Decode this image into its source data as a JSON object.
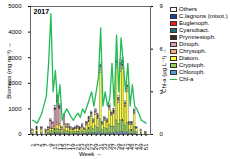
{
  "chart_data": {
    "type": "bar",
    "title": "2017",
    "x_label": "Week",
    "y_label": "Biomass (mg m⁻³)",
    "y2_label": "Chl-a (µg L⁻¹)",
    "stacked": true,
    "legend": "right",
    "x": [
      1,
      3,
      5,
      7,
      8,
      9,
      10,
      11,
      12,
      13,
      14,
      15,
      16,
      17,
      18,
      19,
      20,
      21,
      22,
      23,
      24,
      25,
      26,
      27,
      28,
      29,
      30,
      31,
      32,
      33,
      34,
      35,
      36,
      37,
      38,
      39,
      40,
      41,
      42,
      43,
      44,
      45,
      46,
      47,
      49,
      51
    ],
    "xlim": [
      0,
      53
    ],
    "xticks": [
      1,
      3,
      5,
      7,
      9,
      11,
      13,
      15,
      17,
      19,
      21,
      23,
      25,
      27,
      29,
      31,
      33,
      35,
      37,
      39,
      41,
      43,
      45,
      47,
      49,
      51
    ],
    "ylim": [
      0,
      5000
    ],
    "yticks": [
      0,
      1000,
      2000,
      3000,
      4000,
      5000
    ],
    "y2lim": [
      0,
      9
    ],
    "y2ticks": [
      0,
      3,
      6,
      9
    ],
    "series": [
      {
        "name": "Others",
        "color": "#ffffff",
        "values": [
          20,
          30,
          30,
          20,
          30,
          40,
          40,
          60,
          80,
          60,
          20,
          40,
          30,
          30,
          20,
          20,
          20,
          20,
          20,
          30,
          20,
          30,
          40,
          40,
          30,
          50,
          40,
          80,
          30,
          40,
          30,
          60,
          40,
          50,
          100,
          60,
          100,
          100,
          60,
          80,
          30,
          30,
          50,
          20,
          20,
          10
        ]
      },
      {
        "name": "C.lagnons (mixot.)",
        "color": "#1f3f99",
        "values": [
          0,
          0,
          0,
          0,
          0,
          0,
          0,
          30,
          60,
          50,
          0,
          0,
          0,
          0,
          0,
          0,
          0,
          0,
          0,
          0,
          0,
          0,
          0,
          0,
          0,
          0,
          0,
          0,
          0,
          0,
          0,
          0,
          0,
          0,
          0,
          0,
          0,
          0,
          0,
          0,
          0,
          0,
          0,
          0,
          0,
          0
        ]
      },
      {
        "name": "Euglenoph.",
        "color": "#e8211c",
        "values": [
          0,
          0,
          0,
          0,
          0,
          0,
          0,
          0,
          150,
          50,
          0,
          0,
          0,
          0,
          0,
          0,
          0,
          0,
          0,
          0,
          0,
          0,
          0,
          0,
          0,
          0,
          0,
          0,
          0,
          0,
          0,
          0,
          0,
          0,
          0,
          0,
          0,
          0,
          0,
          0,
          0,
          0,
          0,
          0,
          0,
          0
        ]
      },
      {
        "name": "Cyanobact.",
        "color": "#2a6f6f",
        "values": [
          0,
          0,
          0,
          0,
          0,
          0,
          0,
          0,
          0,
          0,
          0,
          0,
          0,
          0,
          10,
          10,
          20,
          30,
          20,
          30,
          20,
          40,
          50,
          60,
          40,
          60,
          50,
          100,
          30,
          40,
          40,
          60,
          50,
          50,
          100,
          80,
          100,
          100,
          60,
          80,
          30,
          30,
          50,
          20,
          0,
          0
        ]
      },
      {
        "name": "Prymnesioph.",
        "color": "#3b2a1a",
        "values": [
          0,
          0,
          20,
          10,
          20,
          40,
          30,
          50,
          60,
          40,
          10,
          20,
          10,
          10,
          0,
          0,
          0,
          0,
          0,
          0,
          0,
          0,
          0,
          0,
          0,
          0,
          0,
          0,
          0,
          0,
          0,
          0,
          0,
          0,
          0,
          0,
          0,
          0,
          0,
          0,
          0,
          0,
          0,
          0,
          0,
          0
        ]
      },
      {
        "name": "Dinoph.",
        "color": "#d9a0b0",
        "values": [
          20,
          30,
          30,
          30,
          60,
          250,
          200,
          600,
          800,
          600,
          80,
          300,
          80,
          60,
          40,
          30,
          30,
          40,
          30,
          40,
          20,
          40,
          50,
          60,
          40,
          60,
          50,
          100,
          30,
          40,
          30,
          60,
          50,
          50,
          100,
          60,
          100,
          100,
          60,
          80,
          30,
          30,
          50,
          20,
          10,
          10
        ]
      },
      {
        "name": "Chrysoph.",
        "color": "#f4b183",
        "values": [
          30,
          40,
          40,
          20,
          30,
          40,
          30,
          60,
          80,
          60,
          20,
          60,
          40,
          50,
          40,
          30,
          30,
          30,
          30,
          40,
          20,
          40,
          50,
          60,
          40,
          60,
          50,
          120,
          30,
          40,
          30,
          60,
          50,
          50,
          150,
          80,
          150,
          150,
          60,
          100,
          30,
          30,
          50,
          20,
          20,
          10
        ]
      },
      {
        "name": "Diatom.",
        "color": "#ffff33",
        "values": [
          80,
          120,
          100,
          60,
          80,
          100,
          80,
          100,
          150,
          150,
          80,
          200,
          120,
          130,
          90,
          80,
          100,
          120,
          100,
          130,
          80,
          180,
          280,
          400,
          250,
          450,
          350,
          1800,
          200,
          300,
          250,
          600,
          400,
          500,
          2000,
          800,
          1900,
          2000,
          700,
          1200,
          220,
          220,
          500,
          120,
          80,
          40
        ]
      },
      {
        "name": "Cryptoph.",
        "color": "#92d050",
        "values": [
          40,
          60,
          60,
          50,
          60,
          100,
          100,
          160,
          180,
          150,
          70,
          140,
          100,
          100,
          80,
          60,
          80,
          90,
          80,
          100,
          70,
          130,
          180,
          220,
          160,
          260,
          210,
          500,
          150,
          200,
          190,
          300,
          270,
          250,
          450,
          360,
          450,
          450,
          300,
          380,
          130,
          130,
          250,
          80,
          60,
          20
        ]
      },
      {
        "name": "Chloroph.",
        "color": "#5b9bd5",
        "values": [
          10,
          20,
          20,
          10,
          20,
          30,
          20,
          40,
          40,
          40,
          20,
          40,
          20,
          20,
          20,
          20,
          20,
          20,
          20,
          30,
          20,
          40,
          50,
          60,
          40,
          60,
          50,
          100,
          30,
          40,
          30,
          60,
          40,
          50,
          100,
          60,
          100,
          100,
          60,
          80,
          30,
          30,
          50,
          20,
          10,
          10
        ]
      },
      {
        "name": "Chl-a",
        "color": "#22bb55",
        "type": "line",
        "axis": "y2",
        "values": [
          1,
          0.8,
          1.5,
          2.7,
          5,
          8.5,
          3,
          4.5,
          2,
          3.5,
          1,
          1.5,
          1.8,
          1.5,
          1.2,
          1,
          1.3,
          1.5,
          1.2,
          1.8,
          1.5,
          2,
          2.5,
          3,
          2,
          3,
          4,
          7.5,
          2,
          3,
          2,
          2.5,
          5,
          2,
          7,
          3,
          6.8,
          5,
          3,
          5,
          2,
          3.5,
          2,
          1.8,
          1,
          0.8
        ]
      }
    ]
  }
}
